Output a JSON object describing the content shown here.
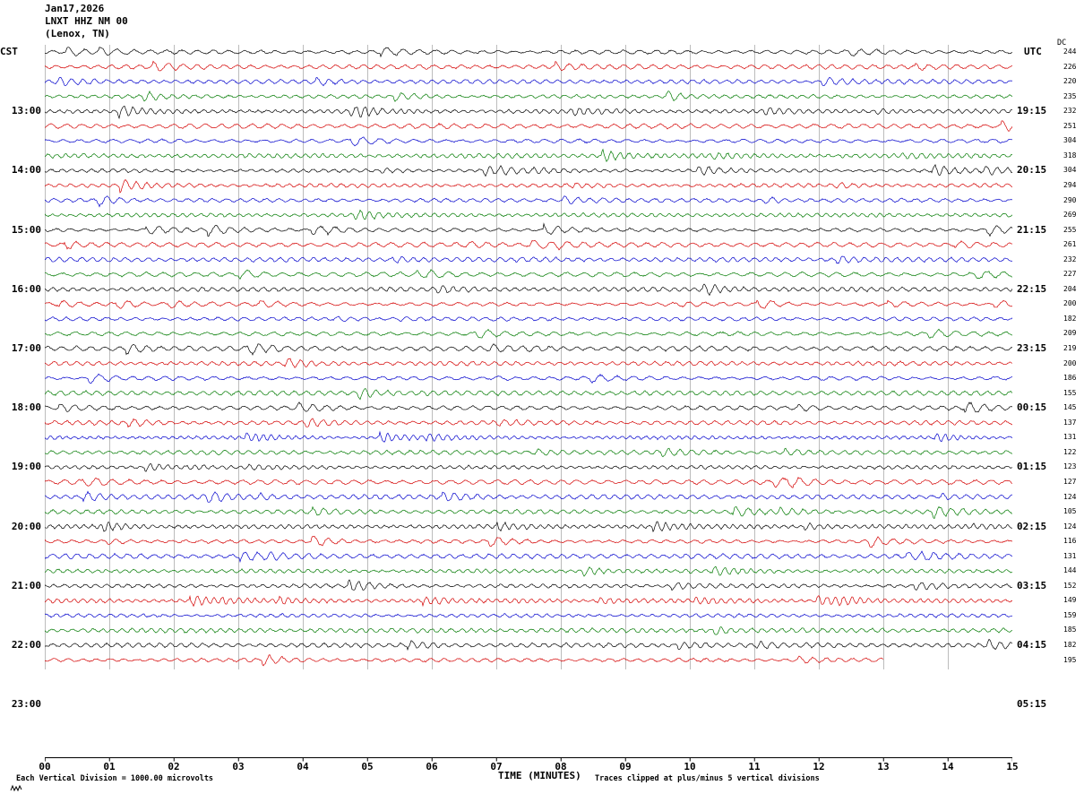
{
  "header": {
    "date": "Jan17,2026",
    "station": "LNXT HHZ NM 00",
    "location": "(Lenox, TN)"
  },
  "axes": {
    "left_label": "CST",
    "right_label": "UTC",
    "dc_label": "DC",
    "xlabel": "TIME (MINUTES)"
  },
  "left_times": [
    "13:00",
    "14:00",
    "15:00",
    "16:00",
    "17:00",
    "18:00",
    "19:00",
    "20:00",
    "21:00",
    "22:00",
    "23:00"
  ],
  "right_times": [
    "19:15",
    "20:15",
    "21:15",
    "22:15",
    "23:15",
    "00:15",
    "01:15",
    "02:15",
    "03:15",
    "04:15",
    "05:15"
  ],
  "dc_values": [
    "244",
    "226",
    "220",
    "235",
    "232",
    "251",
    "304",
    "318",
    "304",
    "294",
    "290",
    "269",
    "255",
    "261",
    "232",
    "227",
    "204",
    "200",
    "182",
    "209",
    "219",
    "200",
    "186",
    "155",
    "145",
    "137",
    "131",
    "122",
    "123",
    "127",
    "124",
    "105",
    "124",
    "116",
    "131",
    "144",
    "152",
    "149",
    "159",
    "185",
    "182",
    "195"
  ],
  "x_ticks": [
    "00",
    "01",
    "02",
    "03",
    "04",
    "05",
    "06",
    "07",
    "08",
    "09",
    "10",
    "11",
    "12",
    "13",
    "14",
    "15"
  ],
  "footer": {
    "division_note": "Each Vertical Division = 1000.00 microvolts",
    "clip_note": "Traces clipped at plus/minus 5 vertical divisions"
  },
  "chart_data": {
    "type": "line",
    "title": "LNXT HHZ NM 00 (Lenox, TN) helicorder, Jan17,2026",
    "xlabel": "TIME (MINUTES)",
    "x_range": [
      0,
      15
    ],
    "x_tick_interval_minutes": 1,
    "minutes_per_trace": 15,
    "traces_per_hour": 4,
    "num_traces": 42,
    "first_trace_start_cst": "12:00",
    "first_trace_start_utc": "18:15",
    "last_trace_end_minute": 13,
    "trace_color_cycle": [
      "#000000",
      "#d40000",
      "#0000cc",
      "#007a00"
    ],
    "grid_color": "#7a7a7a",
    "left_axis_times_cst": [
      "13:00",
      "14:00",
      "15:00",
      "16:00",
      "17:00",
      "18:00",
      "19:00",
      "20:00",
      "21:00",
      "22:00",
      "23:00"
    ],
    "right_axis_times_utc": [
      "19:15",
      "20:15",
      "21:15",
      "22:15",
      "23:15",
      "00:15",
      "01:15",
      "02:15",
      "03:15",
      "04:15",
      "05:15"
    ],
    "dc_offsets": [
      244,
      226,
      220,
      235,
      232,
      251,
      304,
      318,
      304,
      294,
      290,
      269,
      255,
      261,
      232,
      227,
      204,
      200,
      182,
      209,
      219,
      200,
      186,
      155,
      145,
      137,
      131,
      122,
      123,
      127,
      124,
      105,
      124,
      116,
      131,
      144,
      152,
      149,
      159,
      185,
      182,
      195
    ],
    "microvolts_per_division": 1000.0,
    "clip_divisions": 5,
    "content_note": "continuous background seismic noise traces, no labeled events"
  }
}
